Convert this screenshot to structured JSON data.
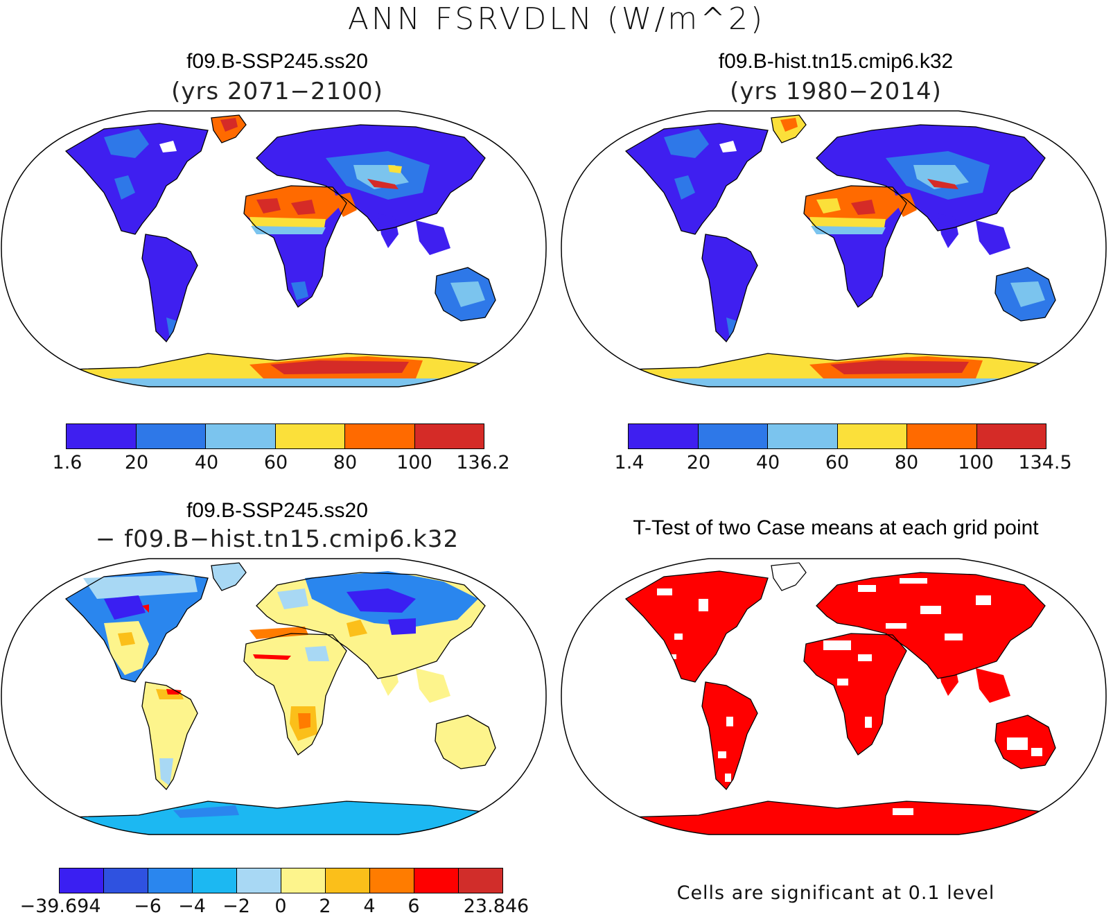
{
  "title": "ANN FSRVDLN (W/m^2)",
  "panels": [
    {
      "id": "p1",
      "title": "f09.B-SSP245.ss20",
      "subtitle": "(yrs 2071−2100)",
      "colorbar": {
        "colors": [
          "#3f1ff0",
          "#2e78e8",
          "#7bc4ee",
          "#fbe03a",
          "#ff6a00",
          "#d52b27"
        ],
        "labels": [
          "1.6",
          "20",
          "40",
          "60",
          "80",
          "100",
          "136.2"
        ]
      }
    },
    {
      "id": "p2",
      "title": "f09.B-hist.tn15.cmip6.k32",
      "subtitle": "(yrs 1980−2014)",
      "colorbar": {
        "colors": [
          "#3f1ff0",
          "#2e78e8",
          "#7bc4ee",
          "#fbe03a",
          "#ff6a00",
          "#d52b27"
        ],
        "labels": [
          "1.4",
          "20",
          "40",
          "60",
          "80",
          "100",
          "134.5"
        ]
      }
    },
    {
      "id": "p3",
      "title": "f09.B-SSP245.ss20",
      "subtitle": "− f09.B−hist.tn15.cmip6.k32",
      "colorbar": {
        "colors": [
          "#3a1ff2",
          "#2f52e0",
          "#2a86ee",
          "#1cb8f2",
          "#a8d8f4",
          "#fdf48c",
          "#fbbf1a",
          "#ff7c00",
          "#fe0000",
          "#d12d2a"
        ],
        "labels": [
          "−39.694",
          "−6",
          "−4",
          "−2",
          "0",
          "2",
          "4",
          "6",
          "",
          "23.846"
        ]
      }
    },
    {
      "id": "p4",
      "title": "T-Test of two Case means at each grid point",
      "note": "Cells are significant at 0.1 level",
      "fill_color": "#ff0000"
    }
  ]
}
